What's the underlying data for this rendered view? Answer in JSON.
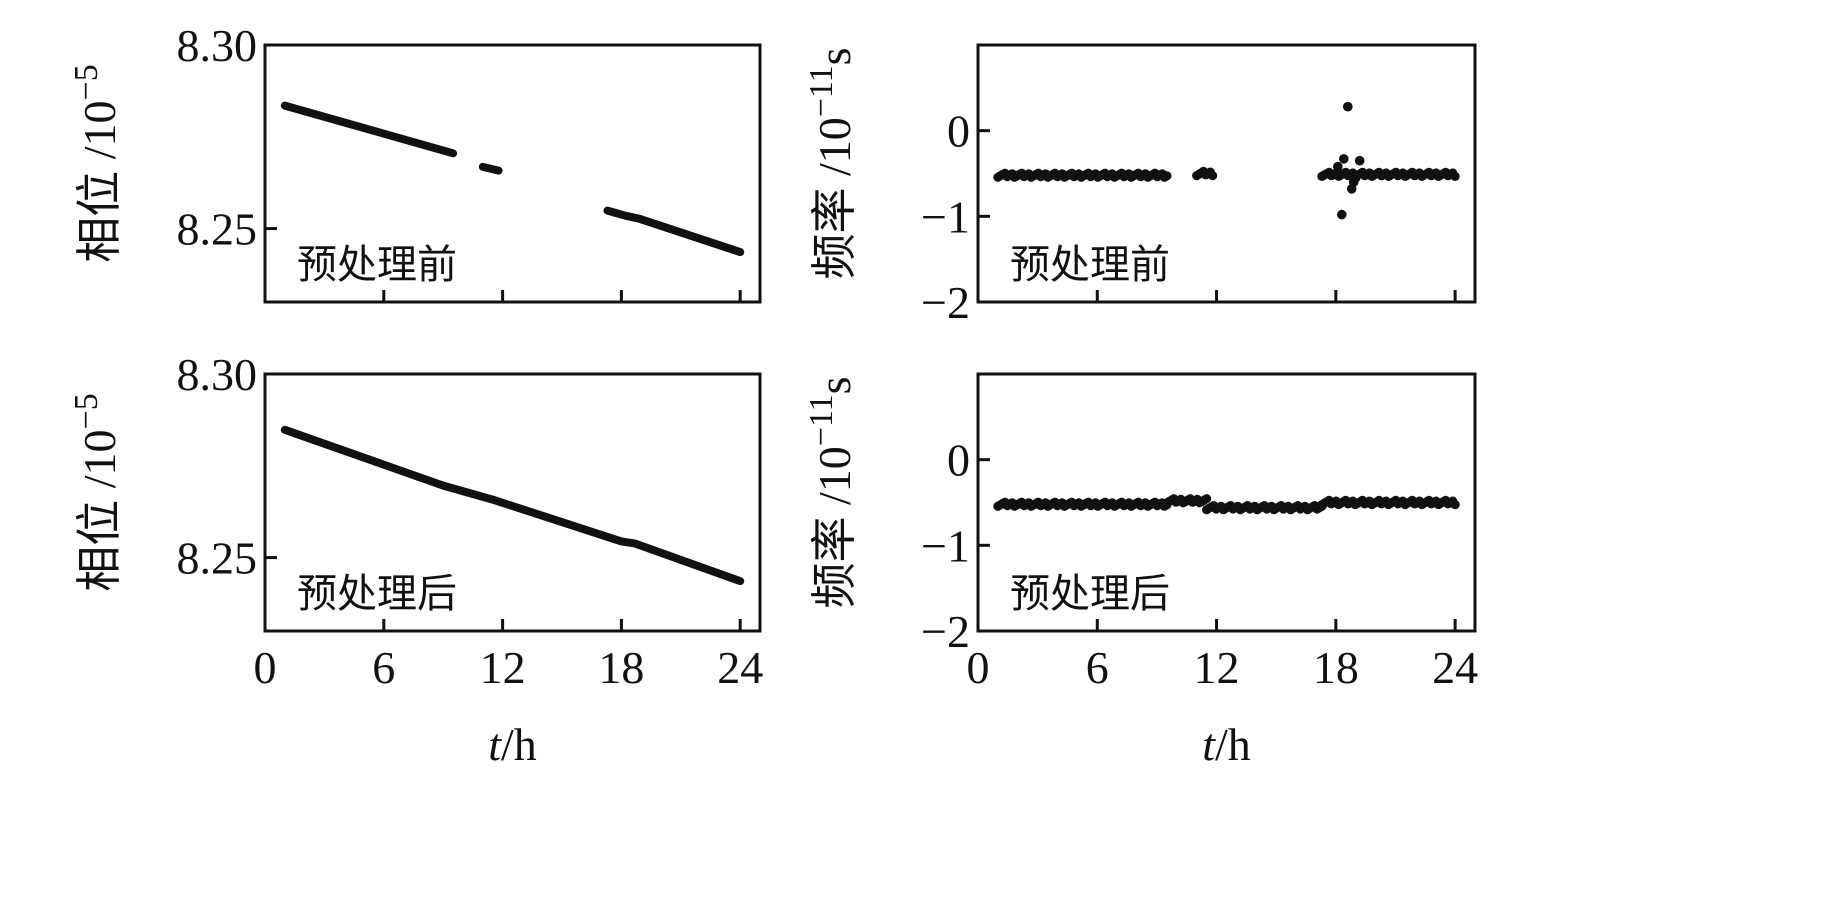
{
  "figure": {
    "x_axis_label_italic": "t",
    "x_axis_label_rest": "/h",
    "x_tick_labels": [
      "0",
      "6",
      "12",
      "18",
      "24"
    ]
  },
  "chart_data": [
    {
      "id": "phase-before",
      "type": "line",
      "note": "预处理前",
      "ylabel_main": "相位 /10",
      "ylabel_exp": "−5",
      "xlim": [
        0,
        25
      ],
      "ylim": [
        8.23,
        8.3
      ],
      "y_ticks": [
        8.25,
        8.3
      ],
      "y_tick_labels": [
        "8.25",
        "8.30"
      ],
      "series": [
        {
          "x": [
            1.0,
            9.5
          ],
          "y": [
            8.2835,
            8.2705
          ]
        },
        {
          "x": [
            11.0,
            11.8
          ],
          "y": [
            8.2668,
            8.2658
          ]
        },
        {
          "x": [
            17.3,
            18.2,
            18.9,
            24.0
          ],
          "y": [
            8.2549,
            8.2535,
            8.2527,
            8.2436
          ]
        }
      ]
    },
    {
      "id": "freq-before",
      "type": "scatter",
      "note": "预处理前",
      "ylabel_main": "频率 /10",
      "ylabel_exp": "−11",
      "ylabel_unit": "s",
      "xlim": [
        0,
        25
      ],
      "ylim": [
        -2,
        1
      ],
      "y_ticks": [
        -2,
        -1,
        0
      ],
      "y_tick_labels": [
        "−2",
        "−1",
        "0"
      ],
      "bands": [
        {
          "x_start": 1.0,
          "x_end": 9.5,
          "y": -0.52
        },
        {
          "x_start": 11.0,
          "x_end": 11.8,
          "y": -0.5
        },
        {
          "x_start": 17.3,
          "x_end": 24.0,
          "y": -0.51
        }
      ],
      "outliers": {
        "x": [
          18.6,
          18.3,
          18.8,
          19.2,
          18.1,
          18.9,
          18.4,
          19.0
        ],
        "y": [
          0.28,
          -0.98,
          -0.68,
          -0.35,
          -0.42,
          -0.6,
          -0.33,
          -0.55
        ]
      }
    },
    {
      "id": "phase-after",
      "type": "line",
      "note": "预处理后",
      "ylabel_main": "相位 /10",
      "ylabel_exp": "−5",
      "xlim": [
        0,
        25
      ],
      "ylim": [
        8.23,
        8.3
      ],
      "y_ticks": [
        8.25,
        8.3
      ],
      "y_tick_labels": [
        "8.25",
        "8.30"
      ],
      "series": [
        {
          "x": [
            1.0,
            9.0,
            11.5,
            18.0,
            18.7,
            24.0
          ],
          "y": [
            8.2848,
            8.2696,
            8.2658,
            8.2544,
            8.2538,
            8.2436
          ]
        }
      ]
    },
    {
      "id": "freq-after",
      "type": "scatter",
      "note": "预处理后",
      "ylabel_main": "频率 /10",
      "ylabel_exp": "−11",
      "ylabel_unit": "s",
      "xlim": [
        0,
        25
      ],
      "ylim": [
        -2,
        1
      ],
      "y_ticks": [
        -2,
        -1,
        0
      ],
      "y_tick_labels": [
        "−2",
        "−1",
        "0"
      ],
      "bands": [
        {
          "x_start": 1.0,
          "x_end": 9.5,
          "y": -0.52
        },
        {
          "x_start": 9.5,
          "x_end": 11.5,
          "y": -0.48
        },
        {
          "x_start": 11.5,
          "x_end": 17.3,
          "y": -0.56
        },
        {
          "x_start": 17.3,
          "x_end": 24.0,
          "y": -0.5
        }
      ],
      "outliers": {
        "x": [],
        "y": []
      }
    }
  ]
}
